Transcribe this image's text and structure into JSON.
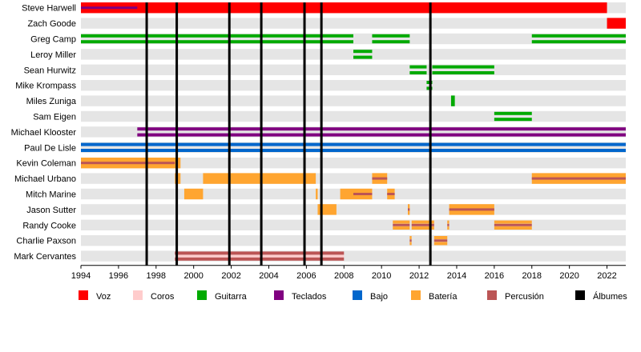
{
  "chart_data": {
    "type": "timeline",
    "x_range": [
      1994,
      2023
    ],
    "x_ticks": [
      "1994",
      "1996",
      "1998",
      "2000",
      "2002",
      "2004",
      "2006",
      "2008",
      "2010",
      "2012",
      "2014",
      "2016",
      "2018",
      "2020",
      "2022"
    ],
    "album_years": [
      1997.5,
      1999.1,
      2001.9,
      2003.6,
      2005.9,
      2006.8,
      2012.6
    ],
    "roles": [
      {
        "key": "voz",
        "label": "Voz",
        "color": "#ff0000"
      },
      {
        "key": "coros",
        "label": "Coros",
        "color": "#ffcccc"
      },
      {
        "key": "guitarra",
        "label": "Guitarra",
        "color": "#00aa00"
      },
      {
        "key": "teclados",
        "label": "Teclados",
        "color": "#800080"
      },
      {
        "key": "bajo",
        "label": "Bajo",
        "color": "#0066cc"
      },
      {
        "key": "bateria",
        "label": "Batería",
        "color": "#ffa530"
      },
      {
        "key": "percusion",
        "label": "Percusión",
        "color": "#bb5555"
      },
      {
        "key": "albumes",
        "label": "Álbumes",
        "color": "#000000"
      }
    ],
    "members": [
      {
        "name": "Steve Harwell",
        "bars": [
          {
            "start": 1994,
            "end": 2022,
            "role": "voz",
            "thin": "teclados",
            "thin_end": 1997
          }
        ]
      },
      {
        "name": "Zach Goode",
        "bars": [
          {
            "start": 2022,
            "end": 2023,
            "role": "voz"
          }
        ]
      },
      {
        "name": "Greg Camp",
        "bars": [
          {
            "start": 1994,
            "end": 2008.5,
            "role": "guitarra",
            "style": "double"
          },
          {
            "start": 2009.5,
            "end": 2011.5,
            "role": "guitarra",
            "style": "double"
          },
          {
            "start": 2018,
            "end": 2023,
            "role": "guitarra",
            "style": "double"
          }
        ]
      },
      {
        "name": "Leroy Miller",
        "bars": [
          {
            "start": 2008.5,
            "end": 2009.5,
            "role": "guitarra",
            "style": "double"
          }
        ]
      },
      {
        "name": "Sean Hurwitz",
        "bars": [
          {
            "start": 2011.5,
            "end": 2012.4,
            "role": "guitarra",
            "style": "double"
          },
          {
            "start": 2012.7,
            "end": 2016,
            "role": "guitarra",
            "style": "double"
          }
        ]
      },
      {
        "name": "Mike Krompass",
        "bars": [
          {
            "start": 2012.4,
            "end": 2012.7,
            "role": "guitarra",
            "style": "double"
          }
        ]
      },
      {
        "name": "Miles Zuniga",
        "bars": [
          {
            "start": 2013.7,
            "end": 2013.9,
            "role": "guitarra"
          }
        ]
      },
      {
        "name": "Sam Eigen",
        "bars": [
          {
            "start": 2016,
            "end": 2018,
            "role": "guitarra",
            "style": "double"
          }
        ]
      },
      {
        "name": "Michael Klooster",
        "bars": [
          {
            "start": 1997,
            "end": 2023,
            "role": "teclados",
            "style": "double"
          }
        ]
      },
      {
        "name": "Paul De Lisle",
        "bars": [
          {
            "start": 1994,
            "end": 2023,
            "role": "bajo",
            "style": "double"
          }
        ]
      },
      {
        "name": "Kevin Coleman",
        "bars": [
          {
            "start": 1994,
            "end": 1999.3,
            "role": "bateria",
            "thin": "percusion",
            "thin_end": 1999
          }
        ]
      },
      {
        "name": "Michael Urbano",
        "bars": [
          {
            "start": 1999,
            "end": 1999.3,
            "role": "bateria"
          },
          {
            "start": 2000.5,
            "end": 2006.5,
            "role": "bateria"
          },
          {
            "start": 2009.5,
            "end": 2010.3,
            "role": "bateria",
            "thin": "percusion"
          },
          {
            "start": 2018,
            "end": 2023,
            "role": "bateria",
            "thin": "percusion"
          }
        ]
      },
      {
        "name": "Mitch Marine",
        "bars": [
          {
            "start": 1999.5,
            "end": 2000.5,
            "role": "bateria"
          },
          {
            "start": 2006.5,
            "end": 2006.6,
            "role": "bateria"
          },
          {
            "start": 2007.8,
            "end": 2009.5,
            "role": "bateria",
            "thin": "percusion",
            "thin_start": 2008.5
          },
          {
            "start": 2010.3,
            "end": 2010.7,
            "role": "bateria",
            "thin": "percusion"
          }
        ]
      },
      {
        "name": "Jason Sutter",
        "bars": [
          {
            "start": 2006.6,
            "end": 2007.6,
            "role": "bateria"
          },
          {
            "start": 2011.4,
            "end": 2011.5,
            "role": "bateria",
            "thin": "percusion"
          },
          {
            "start": 2013.6,
            "end": 2016,
            "role": "bateria",
            "thin": "percusion"
          }
        ]
      },
      {
        "name": "Randy Cooke",
        "bars": [
          {
            "start": 2010.6,
            "end": 2011.5,
            "role": "bateria",
            "style": "double",
            "thin": "percusion"
          },
          {
            "start": 2011.6,
            "end": 2012.8,
            "role": "bateria",
            "style": "double",
            "thin": "percusion"
          },
          {
            "start": 2013.5,
            "end": 2013.6,
            "role": "bateria",
            "style": "double",
            "thin": "percusion"
          },
          {
            "start": 2016,
            "end": 2018,
            "role": "bateria",
            "style": "double",
            "thin": "percusion"
          }
        ]
      },
      {
        "name": "Charlie Paxson",
        "bars": [
          {
            "start": 2011.5,
            "end": 2011.6,
            "role": "bateria",
            "style": "double",
            "thin": "percusion"
          },
          {
            "start": 2012.8,
            "end": 2013.5,
            "role": "bateria",
            "style": "double",
            "thin": "percusion"
          }
        ]
      },
      {
        "name": "Mark Cervantes",
        "bars": [
          {
            "start": 1999,
            "end": 2008,
            "role": "percusion",
            "style": "double",
            "thin": "coros"
          }
        ]
      }
    ]
  }
}
